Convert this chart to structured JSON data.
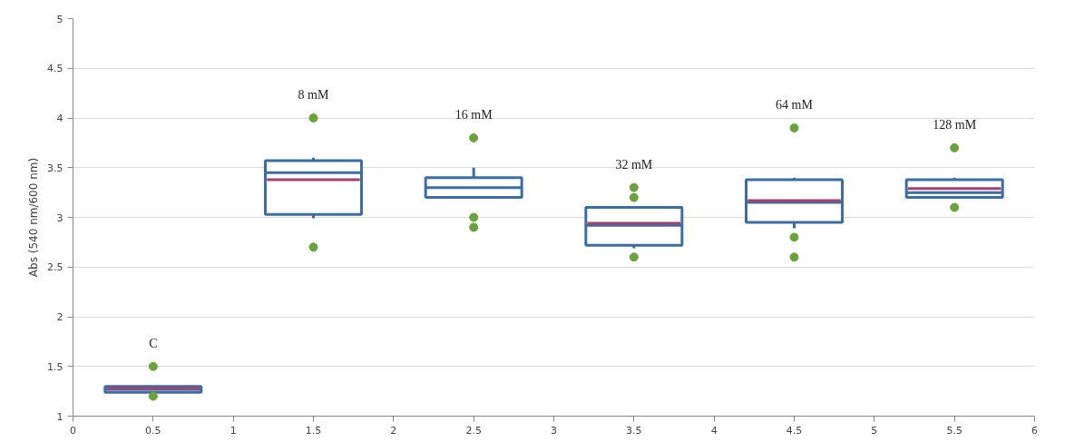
{
  "chart_data": {
    "type": "box",
    "ylabel": "Abs (540 nm/600 nm)",
    "x": [
      0.5,
      1.5,
      2.5,
      3.5,
      4.5,
      5.5
    ],
    "series": [
      {
        "color": "#3b6ea5",
        "boxes": [
          {
            "low": 1.24,
            "q1": 1.24,
            "median": 1.27,
            "q3": 1.3,
            "high": 1.3,
            "mean": 1.28,
            "outliers": [
              1.5,
              1.2
            ]
          },
          {
            "low": 2.99,
            "q1": 3.03,
            "median": 3.45,
            "q3": 3.57,
            "high": 3.6,
            "mean": 3.38,
            "outliers": [
              4.0,
              2.7
            ]
          },
          {
            "low": 3.2,
            "q1": 3.2,
            "median": 3.3,
            "q3": 3.4,
            "high": 3.5,
            "outliers": [
              3.8,
              3.0,
              2.9
            ]
          },
          {
            "low": 2.69,
            "q1": 2.72,
            "median": 2.92,
            "q3": 3.1,
            "high": 3.1,
            "mean": 2.94,
            "outliers": [
              3.3,
              3.2,
              2.6
            ]
          },
          {
            "low": 2.89,
            "q1": 2.95,
            "median": 3.15,
            "q3": 3.38,
            "high": 3.4,
            "mean": 3.17,
            "outliers": [
              3.9,
              2.8,
              2.6
            ]
          },
          {
            "low": 3.2,
            "q1": 3.2,
            "median": 3.25,
            "q3": 3.38,
            "high": 3.4,
            "mean": 3.29,
            "outliers": [
              3.7,
              3.1
            ]
          }
        ]
      }
    ],
    "annotations": [
      "C",
      "8 mM",
      "16 mM",
      "32 mM",
      "64 mM",
      "128 mM"
    ],
    "xlim": [
      0,
      6
    ],
    "xticks": [
      0,
      0.5,
      1,
      1.5,
      2,
      2.5,
      3,
      3.5,
      4,
      4.5,
      5,
      5.5,
      6
    ],
    "ylim": [
      1,
      5
    ],
    "yticks": [
      1,
      1.5,
      2,
      2.5,
      3,
      3.5,
      4,
      4.5,
      5
    ],
    "grid": "y"
  }
}
